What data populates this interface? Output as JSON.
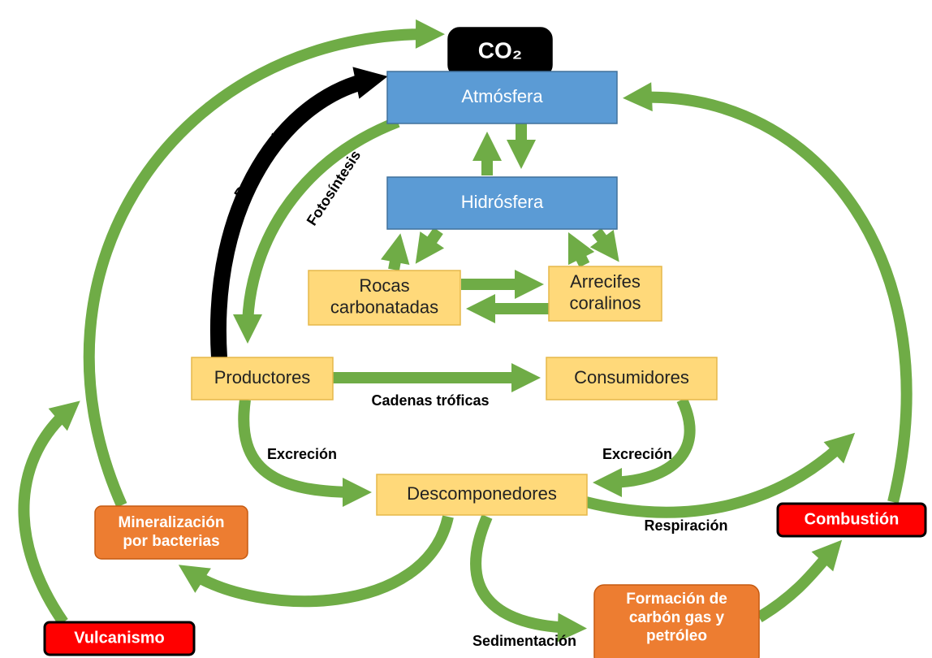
{
  "nodes": [
    {
      "id": "co2",
      "lines": [
        "CO₂"
      ]
    },
    {
      "id": "atmosfera",
      "lines": [
        "Atmósfera"
      ]
    },
    {
      "id": "hidrosfera",
      "lines": [
        "Hidrósfera"
      ]
    },
    {
      "id": "rocas",
      "lines": [
        "Rocas",
        "carbonatadas"
      ]
    },
    {
      "id": "arrecifes",
      "lines": [
        "Arrecifes",
        "coralinos"
      ]
    },
    {
      "id": "productores",
      "lines": [
        "Productores"
      ]
    },
    {
      "id": "consumidores",
      "lines": [
        "Consumidores"
      ]
    },
    {
      "id": "descomponedores",
      "lines": [
        "Descomponedores"
      ]
    },
    {
      "id": "mineralizacion",
      "lines": [
        "Mineralización",
        "por bacterias"
      ]
    },
    {
      "id": "formacion",
      "lines": [
        "Formación de",
        "carbón gas y",
        "petróleo"
      ]
    },
    {
      "id": "vulcanismo",
      "lines": [
        "Vulcanismo"
      ]
    },
    {
      "id": "combustion",
      "lines": [
        "Combustión"
      ]
    }
  ],
  "edge_labels": [
    "Respiración",
    "Fotosíntesis",
    "Cadenas tróficas",
    "Excreción",
    "Excreción",
    "Respiración",
    "Sedimentación"
  ]
}
